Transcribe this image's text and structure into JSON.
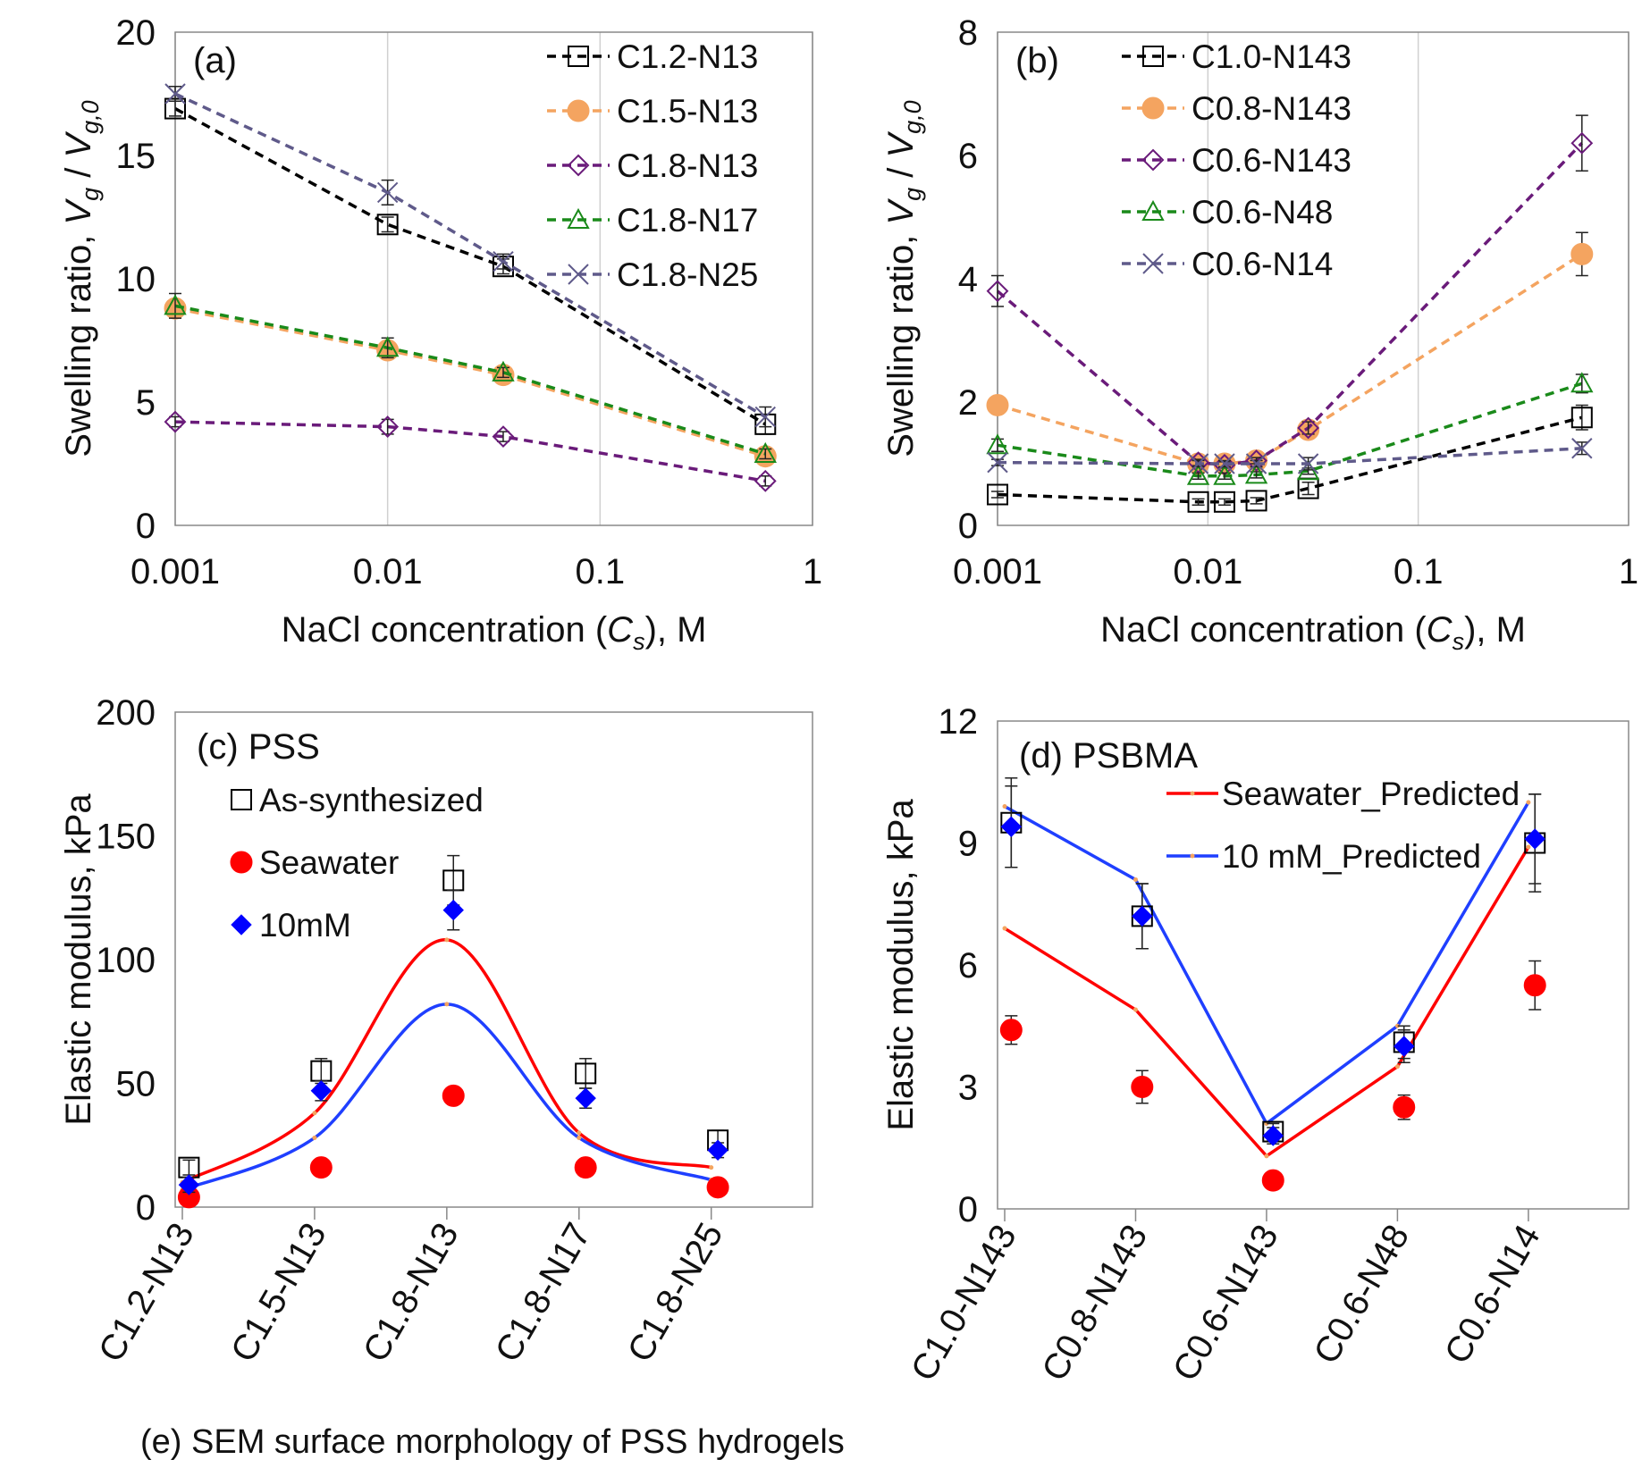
{
  "footer": "(e) SEM surface morphology of PSS hydrogels",
  "chart_data": [
    {
      "panel": "a",
      "type": "line",
      "title": "(a)",
      "xlabel_pre": "NaCl concentration (",
      "xlabel_var": "C",
      "xlabel_sub": "s",
      "xlabel_post": "), M",
      "ylabel_pre": "Swelling ratio, ",
      "ylabel_num": "V",
      "ylabel_num_sub": "g",
      "ylabel_mid": " / ",
      "ylabel_den": "V",
      "ylabel_den_sub": "g,0",
      "xscale": "log",
      "xlim": [
        0.001,
        1
      ],
      "ylim": [
        0,
        20
      ],
      "xticks": [
        "0.001",
        "0.01",
        "0.1",
        "1"
      ],
      "yticks": [
        "0",
        "5",
        "10",
        "15",
        "20"
      ],
      "legend_position": "top-right",
      "grid": "vertical",
      "series": [
        {
          "name": "C1.2-N13",
          "color": "#000000",
          "marker": "square",
          "x": [
            0.001,
            0.01,
            0.035,
            0.6
          ],
          "y": [
            16.9,
            12.2,
            10.5,
            4.1
          ],
          "err": [
            0.3,
            0.3,
            0.3,
            0.4
          ]
        },
        {
          "name": "C1.5-N13",
          "color": "#f4a460",
          "marker": "circle",
          "x": [
            0.001,
            0.01,
            0.035,
            0.6
          ],
          "y": [
            8.8,
            7.1,
            6.1,
            2.8
          ],
          "err": [
            0.3,
            0.3,
            0.2,
            0.2
          ]
        },
        {
          "name": "C1.8-N13",
          "color": "#6a1b7a",
          "marker": "diamond",
          "x": [
            0.001,
            0.01,
            0.035,
            0.6
          ],
          "y": [
            4.2,
            4.0,
            3.6,
            1.8
          ],
          "err": [
            0.2,
            0.3,
            0.2,
            0.2
          ]
        },
        {
          "name": "C1.8-N17",
          "color": "#1a8a1a",
          "marker": "triangle",
          "x": [
            0.001,
            0.01,
            0.035,
            0.6
          ],
          "y": [
            8.9,
            7.2,
            6.2,
            2.9
          ],
          "err": [
            0.5,
            0.4,
            0.2,
            0.2
          ]
        },
        {
          "name": "C1.8-N25",
          "color": "#5f5a8a",
          "marker": "x",
          "x": [
            0.001,
            0.01,
            0.035,
            0.6
          ],
          "y": [
            17.5,
            13.5,
            10.7,
            4.4
          ],
          "err": [
            0.3,
            0.5,
            0.3,
            0.4
          ]
        }
      ]
    },
    {
      "panel": "b",
      "type": "line",
      "title": "(b)",
      "xlabel_pre": "NaCl concentration (",
      "xlabel_var": "C",
      "xlabel_sub": "s",
      "xlabel_post": "), M",
      "ylabel_pre": "Swelling ratio, ",
      "ylabel_num": "V",
      "ylabel_num_sub": "g",
      "ylabel_mid": " / ",
      "ylabel_den": "V",
      "ylabel_den_sub": "g,0",
      "xscale": "log",
      "xlim": [
        0.001,
        1
      ],
      "ylim": [
        0,
        8
      ],
      "xticks": [
        "0.001",
        "0.01",
        "0.1",
        "1"
      ],
      "yticks": [
        "0",
        "2",
        "4",
        "6",
        "8"
      ],
      "legend_position": "top-left",
      "grid": "vertical",
      "series": [
        {
          "name": "C1.0-N143",
          "color": "#000000",
          "marker": "square",
          "x": [
            0.001,
            0.009,
            0.012,
            0.017,
            0.03,
            0.6
          ],
          "y": [
            0.5,
            0.38,
            0.38,
            0.4,
            0.6,
            1.75
          ],
          "err": [
            0.05,
            0.05,
            0.05,
            0.05,
            0.1,
            0.2
          ]
        },
        {
          "name": "C0.8-N143",
          "color": "#f4a460",
          "marker": "circle",
          "x": [
            0.001,
            0.009,
            0.012,
            0.017,
            0.03,
            0.6
          ],
          "y": [
            1.95,
            1.0,
            1.0,
            1.05,
            1.55,
            4.4
          ],
          "err": [
            0.1,
            0.05,
            0.05,
            0.05,
            0.1,
            0.35
          ]
        },
        {
          "name": "C0.6-N143",
          "color": "#6a1b7a",
          "marker": "diamond",
          "x": [
            0.001,
            0.009,
            0.012,
            0.017,
            0.03,
            0.6
          ],
          "y": [
            3.8,
            1.02,
            0.98,
            1.05,
            1.58,
            6.2
          ],
          "err": [
            0.25,
            0.05,
            0.05,
            0.05,
            0.1,
            0.45
          ]
        },
        {
          "name": "C0.6-N48",
          "color": "#1a8a1a",
          "marker": "triangle",
          "x": [
            0.001,
            0.009,
            0.012,
            0.017,
            0.03,
            0.6
          ],
          "y": [
            1.3,
            0.8,
            0.8,
            0.82,
            0.88,
            2.3
          ],
          "err": [
            0.1,
            0.05,
            0.05,
            0.05,
            0.05,
            0.15
          ]
        },
        {
          "name": "C0.6-N14",
          "color": "#5f5a8a",
          "marker": "x",
          "x": [
            0.001,
            0.009,
            0.012,
            0.017,
            0.03,
            0.6
          ],
          "y": [
            1.02,
            1.0,
            1.0,
            1.0,
            1.0,
            1.25
          ],
          "err": [
            0.05,
            0.05,
            0.05,
            0.05,
            0.1,
            0.1
          ]
        }
      ]
    },
    {
      "panel": "c",
      "type": "line",
      "title": "(c) PSS",
      "ylabel": "Elastic modulus, kPa",
      "ylim": [
        0,
        200
      ],
      "yticks": [
        "0",
        "50",
        "100",
        "150",
        "200"
      ],
      "categories": [
        "C1.2-N13",
        "C1.5-N13",
        "C1.8-N13",
        "C1.8-N17",
        "C1.8-N25"
      ],
      "legend_position": "top-left",
      "grid": "none",
      "scatter": [
        {
          "name": "As-synthesized",
          "color": "#000000",
          "marker": "square",
          "x": [
            0.05,
            1.05,
            2.05,
            3.05,
            4.05
          ],
          "y": [
            16,
            55,
            132,
            54,
            27
          ],
          "err": [
            3,
            5,
            10,
            6,
            4
          ]
        },
        {
          "name": "Seawater",
          "color": "#ff0000",
          "marker": "circle",
          "x": [
            0.05,
            1.05,
            2.05,
            3.05,
            4.05
          ],
          "y": [
            4,
            16,
            45,
            16,
            8
          ],
          "err": [
            0,
            0,
            0,
            0,
            0
          ]
        },
        {
          "name": "10mM",
          "color": "#0000ff",
          "marker": "diamond",
          "x": [
            0.05,
            1.05,
            2.05,
            3.05,
            4.05
          ],
          "y": [
            9,
            47,
            120,
            44,
            23
          ],
          "err": [
            3,
            4,
            8,
            4,
            3
          ]
        }
      ],
      "lines": [
        {
          "color": "#ff0000",
          "x": [
            0.0,
            1.0,
            2.0,
            3.0,
            4.0
          ],
          "y": [
            10,
            38,
            108,
            30,
            16
          ]
        },
        {
          "color": "#1f3fff",
          "x": [
            0.0,
            1.0,
            2.0,
            3.0,
            4.0
          ],
          "y": [
            7,
            28,
            82,
            28,
            11
          ]
        }
      ]
    },
    {
      "panel": "d",
      "type": "line",
      "title": "(d) PSBMA",
      "ylabel": "Elastic modulus, kPa",
      "ylim": [
        0,
        12
      ],
      "yticks": [
        "0",
        "3",
        "6",
        "9",
        "12"
      ],
      "categories": [
        "C1.0-N143",
        "C0.8-N143",
        "C0.6-N143",
        "C0.6-N48",
        "C0.6-N14"
      ],
      "legend_position": "top-right",
      "grid": "none",
      "scatter": [
        {
          "name": "",
          "color": "#000000",
          "marker": "square",
          "x": [
            0.05,
            1.05,
            2.05,
            3.05,
            4.05
          ],
          "y": [
            9.5,
            7.2,
            1.9,
            4.1,
            9.0
          ],
          "err": [
            1.1,
            0.8,
            0.2,
            0.4,
            1.2
          ]
        },
        {
          "name": "",
          "color": "#ff0000",
          "marker": "circle",
          "x": [
            0.05,
            1.05,
            2.05,
            3.05,
            4.05
          ],
          "y": [
            4.4,
            3.0,
            0.7,
            2.5,
            5.5
          ],
          "err": [
            0.35,
            0.4,
            0.05,
            0.3,
            0.6
          ]
        },
        {
          "name": "",
          "color": "#0000ff",
          "marker": "diamond",
          "x": [
            0.05,
            1.05,
            2.05,
            3.05,
            4.05
          ],
          "y": [
            9.4,
            7.2,
            1.8,
            4.0,
            9.1
          ],
          "err": [
            1.0,
            0.8,
            0.2,
            0.4,
            1.1
          ]
        }
      ],
      "lines": [
        {
          "name": "Seawater_Predicted",
          "color": "#ff0000",
          "x": [
            0.0,
            1.0,
            2.0,
            3.0,
            4.0
          ],
          "y": [
            6.9,
            4.9,
            1.3,
            3.5,
            8.9
          ]
        },
        {
          "name": "10 mM_Predicted",
          "color": "#1f3fff",
          "x": [
            0.0,
            1.0,
            2.0,
            3.0,
            4.0
          ],
          "y": [
            9.9,
            8.1,
            2.1,
            4.5,
            10.0
          ]
        }
      ]
    }
  ]
}
